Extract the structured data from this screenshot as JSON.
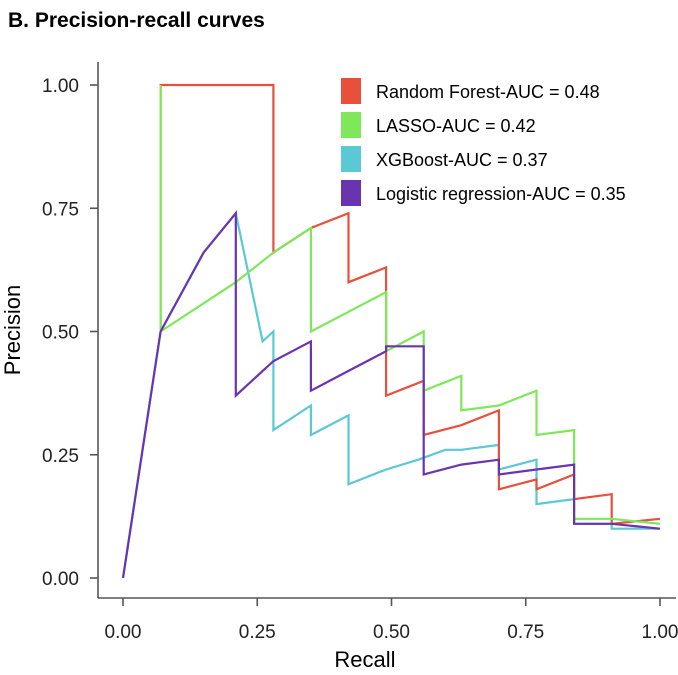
{
  "chart_data": {
    "type": "line",
    "title": "B. Precision-recall curves",
    "xlabel": "Recall",
    "ylabel": "Precision",
    "xlim": [
      0,
      1
    ],
    "ylim": [
      0,
      1
    ],
    "x_ticks": [
      "0.00",
      "0.25",
      "0.50",
      "0.75",
      "1.00"
    ],
    "y_ticks": [
      "0.00",
      "0.25",
      "0.50",
      "0.75",
      "1.00"
    ],
    "grid": false,
    "legend_position": "top-right",
    "series": [
      {
        "name": "XGBoost-AUC = 0.37",
        "color": "#5bc8d6",
        "points": [
          [
            0,
            0
          ],
          [
            0.07,
            0.5
          ],
          [
            0.15,
            0.66
          ],
          [
            0.21,
            0.74
          ],
          [
            0.21,
            0.74
          ],
          [
            0.26,
            0.48
          ],
          [
            0.28,
            0.5
          ],
          [
            0.28,
            0.3
          ],
          [
            0.35,
            0.35
          ],
          [
            0.35,
            0.29
          ],
          [
            0.42,
            0.33
          ],
          [
            0.42,
            0.19
          ],
          [
            0.49,
            0.22
          ],
          [
            0.55,
            0.24
          ],
          [
            0.6,
            0.26
          ],
          [
            0.63,
            0.26
          ],
          [
            0.7,
            0.27
          ],
          [
            0.7,
            0.22
          ],
          [
            0.77,
            0.24
          ],
          [
            0.77,
            0.15
          ],
          [
            0.84,
            0.16
          ],
          [
            0.84,
            0.11
          ],
          [
            0.91,
            0.11
          ],
          [
            0.91,
            0.1
          ],
          [
            1.0,
            0.1
          ]
        ]
      },
      {
        "name": "Random Forest-AUC = 0.48",
        "color": "#e8503c",
        "points": [
          [
            0.07,
            0.5
          ],
          [
            0.07,
            1.0
          ],
          [
            0.28,
            1.0
          ],
          [
            0.28,
            0.66
          ],
          [
            0.35,
            0.71
          ],
          [
            0.42,
            0.74
          ],
          [
            0.42,
            0.6
          ],
          [
            0.49,
            0.63
          ],
          [
            0.49,
            0.37
          ],
          [
            0.56,
            0.4
          ],
          [
            0.56,
            0.29
          ],
          [
            0.63,
            0.31
          ],
          [
            0.7,
            0.34
          ],
          [
            0.7,
            0.18
          ],
          [
            0.77,
            0.2
          ],
          [
            0.77,
            0.18
          ],
          [
            0.84,
            0.21
          ],
          [
            0.84,
            0.16
          ],
          [
            0.91,
            0.17
          ],
          [
            0.91,
            0.11
          ],
          [
            1.0,
            0.12
          ]
        ]
      },
      {
        "name": "LASSO-AUC = 0.42",
        "color": "#7ee85a",
        "points": [
          [
            0.07,
            0.5
          ],
          [
            0.07,
            1.0
          ],
          [
            0.07,
            0.5
          ],
          [
            0.21,
            0.6
          ],
          [
            0.28,
            0.66
          ],
          [
            0.35,
            0.71
          ],
          [
            0.35,
            0.5
          ],
          [
            0.42,
            0.54
          ],
          [
            0.49,
            0.58
          ],
          [
            0.49,
            0.46
          ],
          [
            0.56,
            0.5
          ],
          [
            0.56,
            0.38
          ],
          [
            0.63,
            0.41
          ],
          [
            0.63,
            0.34
          ],
          [
            0.7,
            0.35
          ],
          [
            0.77,
            0.38
          ],
          [
            0.77,
            0.29
          ],
          [
            0.84,
            0.3
          ],
          [
            0.84,
            0.12
          ],
          [
            0.91,
            0.12
          ],
          [
            1.0,
            0.11
          ]
        ]
      },
      {
        "name": "Logistic regression-AUC = 0.35",
        "color": "#6a34b0",
        "points": [
          [
            0,
            0
          ],
          [
            0.07,
            0.5
          ],
          [
            0.15,
            0.66
          ],
          [
            0.21,
            0.74
          ],
          [
            0.21,
            0.37
          ],
          [
            0.28,
            0.44
          ],
          [
            0.35,
            0.48
          ],
          [
            0.35,
            0.38
          ],
          [
            0.42,
            0.42
          ],
          [
            0.49,
            0.46
          ],
          [
            0.49,
            0.47
          ],
          [
            0.56,
            0.47
          ],
          [
            0.56,
            0.21
          ],
          [
            0.63,
            0.23
          ],
          [
            0.7,
            0.24
          ],
          [
            0.7,
            0.21
          ],
          [
            0.77,
            0.22
          ],
          [
            0.84,
            0.23
          ],
          [
            0.84,
            0.11
          ],
          [
            0.91,
            0.11
          ],
          [
            1.0,
            0.1
          ]
        ]
      }
    ],
    "legend_order": [
      1,
      2,
      0,
      3
    ]
  }
}
